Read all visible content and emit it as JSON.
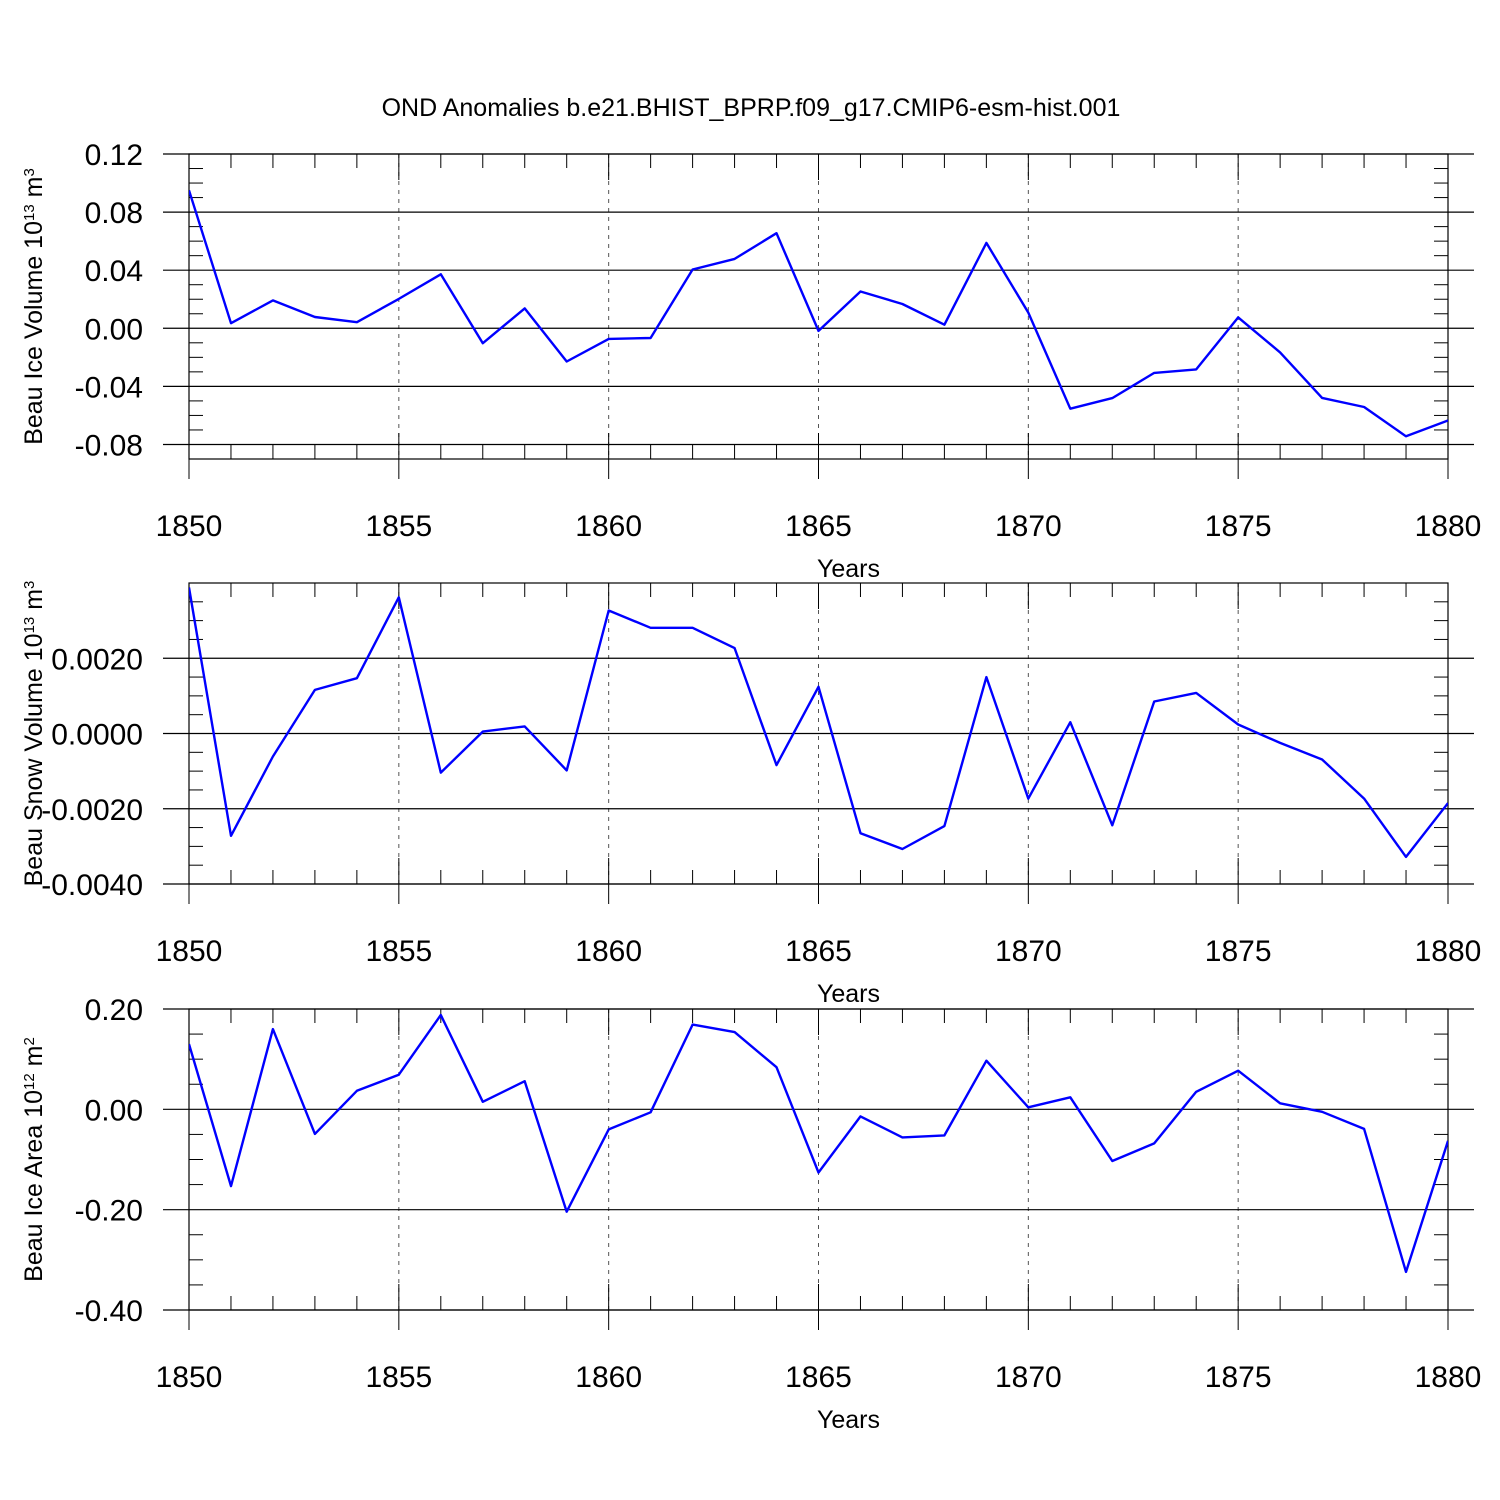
{
  "colors": {
    "line": "#0000ff",
    "axis": "#000000",
    "grid": "#555555"
  },
  "chart_data": [
    {
      "type": "line",
      "title": "OND Anomalies b.e21.BHIST_BPRP.f09_g17.CMIP6-esm-hist.001",
      "xlabel": "Years",
      "ylabel": {
        "text": "Beau Ice Volume 10",
        "sup": "13",
        "unit": " m",
        "unit_sup": "3"
      },
      "xlim": [
        1850,
        1880
      ],
      "ylim": [
        -0.09,
        0.12
      ],
      "xticks": [
        {
          "value": 1850,
          "label": "1850"
        },
        {
          "value": 1855,
          "label": "1855"
        },
        {
          "value": 1860,
          "label": "1860"
        },
        {
          "value": 1865,
          "label": "1865"
        },
        {
          "value": 1870,
          "label": "1870"
        },
        {
          "value": 1875,
          "label": "1875"
        },
        {
          "value": 1880,
          "label": "1880"
        }
      ],
      "yticks": [
        {
          "value": 0.12,
          "label": "0.12"
        },
        {
          "value": 0.08,
          "label": "0.08"
        },
        {
          "value": 0.04,
          "label": "0.04"
        },
        {
          "value": 0.0,
          "label": "0.00"
        },
        {
          "value": -0.04,
          "label": "-0.04"
        },
        {
          "value": -0.08,
          "label": "-0.08"
        }
      ],
      "y_minor_step": 0.01,
      "x": [
        1850,
        1851,
        1852,
        1853,
        1854,
        1855,
        1856,
        1857,
        1858,
        1859,
        1860,
        1861,
        1862,
        1863,
        1864,
        1865,
        1866,
        1867,
        1868,
        1869,
        1870,
        1871,
        1872,
        1873,
        1874,
        1875,
        1876,
        1877,
        1878,
        1879,
        1880
      ],
      "values": [
        0.095,
        0.0035,
        0.0192,
        0.0078,
        0.0042,
        0.0202,
        0.0372,
        -0.0103,
        0.0137,
        -0.0229,
        -0.0073,
        -0.0067,
        0.0405,
        0.0478,
        0.0655,
        -0.0018,
        0.0253,
        0.0167,
        0.0025,
        0.0588,
        0.0108,
        -0.0554,
        -0.0481,
        -0.0307,
        -0.0283,
        0.0075,
        -0.0166,
        -0.0479,
        -0.0542,
        -0.0744,
        -0.0635
      ]
    },
    {
      "type": "line",
      "xlabel": "Years",
      "ylabel": {
        "text": "Beau Snow Volume 10",
        "sup": "13",
        "unit": " m",
        "unit_sup": "3"
      },
      "xlim": [
        1850,
        1880
      ],
      "ylim": [
        -0.004,
        0.004
      ],
      "xticks": [
        {
          "value": 1850,
          "label": "1850"
        },
        {
          "value": 1855,
          "label": "1855"
        },
        {
          "value": 1860,
          "label": "1860"
        },
        {
          "value": 1865,
          "label": "1865"
        },
        {
          "value": 1870,
          "label": "1870"
        },
        {
          "value": 1875,
          "label": "1875"
        },
        {
          "value": 1880,
          "label": "1880"
        }
      ],
      "yticks": [
        {
          "value": 0.002,
          "label": "0.0020"
        },
        {
          "value": 0.0,
          "label": "0.0000"
        },
        {
          "value": -0.002,
          "label": "-0.0020"
        },
        {
          "value": -0.004,
          "label": "-0.0040"
        }
      ],
      "y_minor_step": 0.0005,
      "x": [
        1850,
        1851,
        1852,
        1853,
        1854,
        1855,
        1856,
        1857,
        1858,
        1859,
        1860,
        1861,
        1862,
        1863,
        1864,
        1865,
        1866,
        1867,
        1868,
        1869,
        1870,
        1871,
        1872,
        1873,
        1874,
        1875,
        1876,
        1877,
        1878,
        1879,
        1880
      ],
      "values": [
        0.00388,
        -0.00272,
        -0.00061,
        0.00116,
        0.00147,
        0.00362,
        -0.00104,
        5e-05,
        0.00019,
        -0.00098,
        0.00327,
        0.00281,
        0.00281,
        0.00227,
        -0.00084,
        0.00124,
        -0.00265,
        -0.00307,
        -0.00246,
        0.0015,
        -0.00173,
        0.0003,
        -0.00244,
        0.00085,
        0.00108,
        0.00024,
        -0.00025,
        -0.00069,
        -0.00173,
        -0.00328,
        -0.00185
      ]
    },
    {
      "type": "line",
      "xlabel": "Years",
      "ylabel": {
        "text": "Beau Ice Area 10",
        "sup": "12",
        "unit": " m",
        "unit_sup": "2"
      },
      "xlim": [
        1850,
        1880
      ],
      "ylim": [
        -0.4,
        0.2
      ],
      "xticks": [
        {
          "value": 1850,
          "label": "1850"
        },
        {
          "value": 1855,
          "label": "1855"
        },
        {
          "value": 1860,
          "label": "1860"
        },
        {
          "value": 1865,
          "label": "1865"
        },
        {
          "value": 1870,
          "label": "1870"
        },
        {
          "value": 1875,
          "label": "1875"
        },
        {
          "value": 1880,
          "label": "1880"
        }
      ],
      "yticks": [
        {
          "value": 0.2,
          "label": "0.20"
        },
        {
          "value": 0.0,
          "label": "0.00"
        },
        {
          "value": -0.2,
          "label": "-0.20"
        },
        {
          "value": -0.4,
          "label": "-0.40"
        }
      ],
      "y_minor_step": 0.05,
      "x": [
        1850,
        1851,
        1852,
        1853,
        1854,
        1855,
        1856,
        1857,
        1858,
        1859,
        1860,
        1861,
        1862,
        1863,
        1864,
        1865,
        1866,
        1867,
        1868,
        1869,
        1870,
        1871,
        1872,
        1873,
        1874,
        1875,
        1876,
        1877,
        1878,
        1879,
        1880
      ],
      "values": [
        0.13,
        -0.153,
        0.16,
        -0.049,
        0.037,
        0.069,
        0.188,
        0.015,
        0.056,
        -0.204,
        -0.04,
        -0.006,
        0.169,
        0.154,
        0.084,
        -0.126,
        -0.014,
        -0.056,
        -0.052,
        0.097,
        0.004,
        0.024,
        -0.103,
        -0.068,
        0.035,
        0.077,
        0.012,
        -0.005,
        -0.039,
        -0.324,
        -0.063
      ]
    }
  ]
}
